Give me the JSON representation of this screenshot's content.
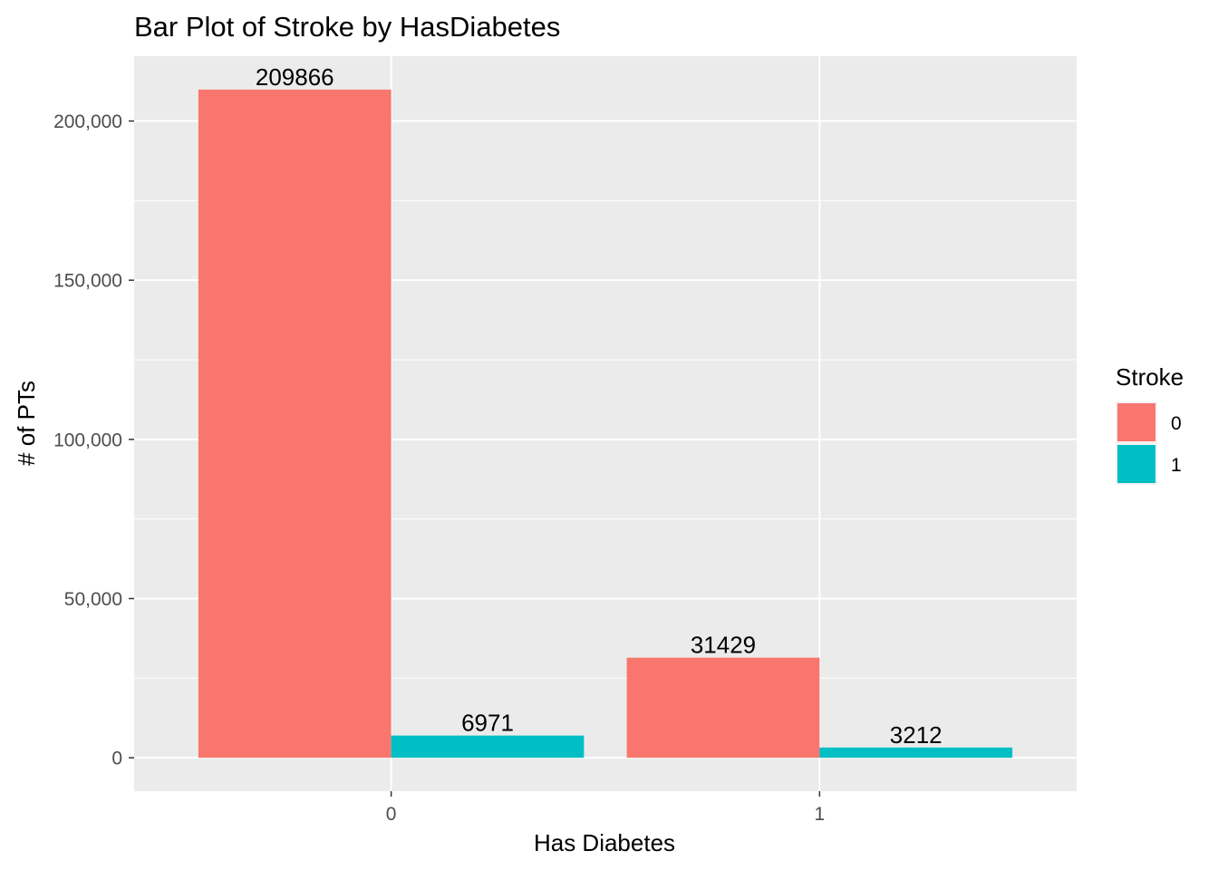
{
  "chart_data": {
    "type": "bar",
    "title": "Bar Plot of Stroke by HasDiabetes",
    "xlabel": "Has Diabetes",
    "ylabel": "# of PTs",
    "categories": [
      "0",
      "1"
    ],
    "series": [
      {
        "name": "0",
        "values": [
          209866,
          31429
        ],
        "labels": [
          "209866",
          "31429"
        ],
        "color": "#F8766D"
      },
      {
        "name": "1",
        "values": [
          6971,
          3212
        ],
        "labels": [
          "6971",
          "3212"
        ],
        "color": "#00BFC4"
      }
    ],
    "ylim": [
      -10493,
      220359
    ],
    "yticks": [
      0,
      50000,
      100000,
      150000,
      200000
    ],
    "ytick_labels": [
      "0",
      "50,000",
      "100,000",
      "150,000",
      "200,000"
    ],
    "legend": {
      "title": "Stroke",
      "position": "right"
    },
    "grid": true,
    "panel_background": "#EBEBEB",
    "grid_color": "#FFFFFF"
  }
}
